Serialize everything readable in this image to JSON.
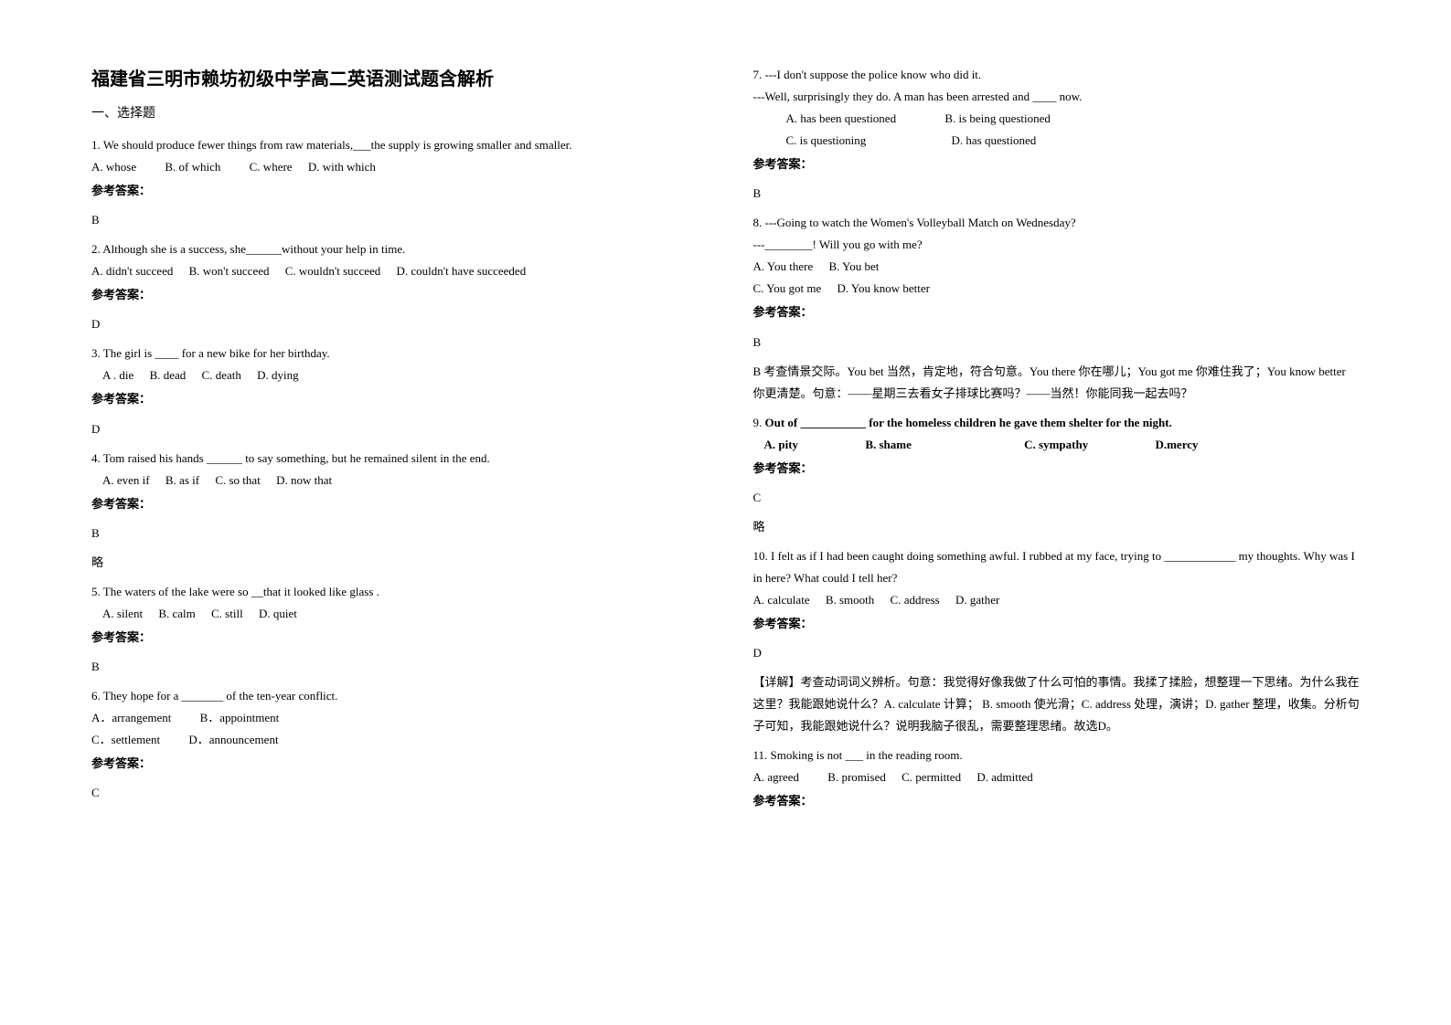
{
  "title": "福建省三明市赖坊初级中学高二英语测试题含解析",
  "section_header": "一、选择题",
  "answer_label": "参考答案：",
  "abbrev": "略",
  "q1": {
    "text": "1. We should produce fewer things from raw materials,___the supply is growing smaller and smaller.",
    "optA": "A. whose",
    "optB": "B. of which",
    "optC": "C. where",
    "optD": "D. with which",
    "answer": "B"
  },
  "q2": {
    "text": "2. Although she is a success, she______without your help in time.",
    "optA": "A. didn't succeed",
    "optB": "B. won't succeed",
    "optC": "C. wouldn't succeed",
    "optD": "D. couldn't have succeeded",
    "answer": "D"
  },
  "q3": {
    "text": "3. The girl is ____ for a new bike for her birthday.",
    "optA": "A . die",
    "optB": "B. dead",
    "optC": "C. death",
    "optD": "D. dying",
    "answer": "D"
  },
  "q4": {
    "text": "4. Tom raised his hands ______ to say something, but he remained silent in the end.",
    "optA": "A. even if",
    "optB": "B. as if",
    "optC": "C. so that",
    "optD": "D. now that",
    "answer": "B"
  },
  "q5": {
    "text": "5. The waters of the lake were so __that it looked like glass .",
    "optA": "A. silent",
    "optB": "B. calm",
    "optC": "C. still",
    "optD": "D. quiet",
    "answer": "B"
  },
  "q6": {
    "text": "6. They hope for a _______ of the ten-year conflict.",
    "optA": "A．arrangement",
    "optB": "B．appointment",
    "optC": "C．settlement",
    "optD": "D．announcement",
    "answer": "C"
  },
  "q7": {
    "text1": "7. ---I don't suppose the police know who did it.",
    "text2": "---Well, surprisingly they do. A man has been arrested and ____ now.",
    "optA": "A. has been questioned",
    "optB": "B. is being questioned",
    "optC": "C. is questioning",
    "optD": "D. has questioned",
    "answer": "B"
  },
  "q8": {
    "text1": "8. ---Going to watch the Women's Volleyball Match on Wednesday?",
    "text2": "---________! Will you go with me?",
    "optA": "A. You there",
    "optB": "B. You bet",
    "optC": "C. You got me",
    "optD": "D. You know better",
    "answer": "B",
    "explanation": "B 考查情景交际。You bet 当然，肯定地，符合句意。You there 你在哪儿；You got me 你难住我了；You know better 你更清楚。句意：——星期三去看女子排球比赛吗？——当然！你能同我一起去吗？"
  },
  "q9": {
    "prefix": "9. ",
    "bold1": "Out of ___________ for the homeless children he gave them shelter for the night.",
    "optA": "A. pity",
    "optB": "B. shame",
    "optC": "C. sympathy",
    "optD": "D.mercy",
    "answer": "C"
  },
  "q10": {
    "text": "10. I felt as if I had been caught doing something awful. I rubbed at my face, trying to ____________ my thoughts. Why was I in here? What could I tell her?",
    "optA": "A. calculate",
    "optB": "B. smooth",
    "optC": "C. address",
    "optD": "D. gather",
    "answer": "D",
    "explanation": "【详解】考查动词词义辨析。句意：我觉得好像我做了什么可怕的事情。我揉了揉脸，想整理一下思绪。为什么我在这里？我能跟她说什么？A. calculate 计算； B. smooth 使光滑；C. address 处理，演讲；D. gather 整理，收集。分析句子可知，我能跟她说什么？说明我脑子很乱，需要整理思绪。故选D。"
  },
  "q11": {
    "text": "11. Smoking is not ___ in the reading room.",
    "optA": "A. agreed",
    "optB": "B. promised",
    "optC": "C. permitted",
    "optD": "D. admitted"
  }
}
